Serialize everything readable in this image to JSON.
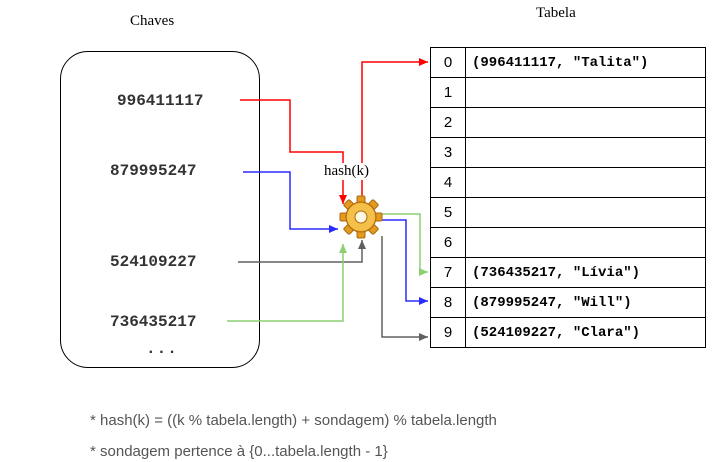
{
  "keys_title": "Chaves",
  "table_title": "Tabela",
  "keys": [
    "996411117",
    "879995247",
    "524109227",
    "736435217"
  ],
  "ellipsis": "...",
  "hash_label": "hash(k)",
  "table_rows": [
    {
      "index": "0",
      "value": "(996411117, \"Talita\")"
    },
    {
      "index": "1",
      "value": ""
    },
    {
      "index": "2",
      "value": ""
    },
    {
      "index": "3",
      "value": ""
    },
    {
      "index": "4",
      "value": ""
    },
    {
      "index": "5",
      "value": ""
    },
    {
      "index": "6",
      "value": ""
    },
    {
      "index": "7",
      "value": "(736435217, \"Lívia\")"
    },
    {
      "index": "8",
      "value": "(879995247, \"Will\")"
    },
    {
      "index": "9",
      "value": "(524109227, \"Clara\")"
    }
  ],
  "notes": [
    "* hash(k) = ((k % tabela.length) + sondagem) % tabela.length",
    "* sondagem pertence à {0...tabela.length - 1}"
  ],
  "colors": {
    "red": "#ff0000",
    "blue": "#2b2bff",
    "gray": "#606060",
    "green": "#8ccf72"
  }
}
